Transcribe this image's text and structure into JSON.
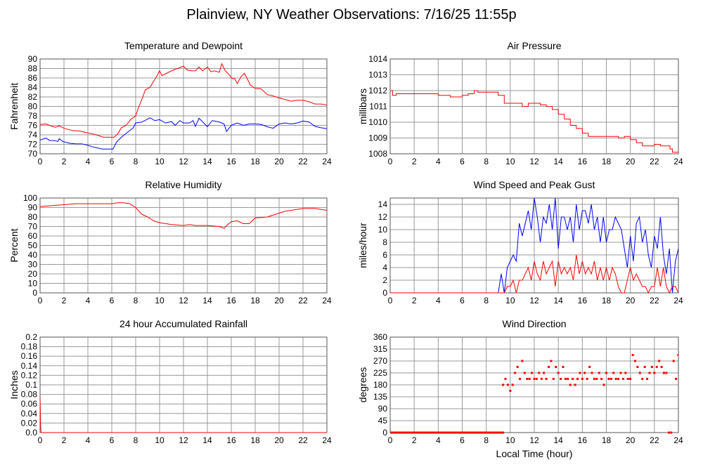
{
  "title": "Plainview, NY Weather Observations: 7/16/25 11:55p",
  "xlabel": "Local Time (hour)",
  "colors": {
    "red": "#ff0000",
    "blue": "#0000ff",
    "grid": "#999999"
  },
  "chart_data": [
    {
      "type": "line",
      "title": "Temperature and Dewpoint",
      "ylabel": "Fahrenheit",
      "xlim": [
        0,
        24
      ],
      "ylim": [
        70,
        90
      ],
      "xticks": [
        "0",
        "2",
        "4",
        "6",
        "8",
        "10",
        "12",
        "14",
        "16",
        "18",
        "20",
        "22",
        "24"
      ],
      "yticks": [
        "70",
        "72",
        "74",
        "76",
        "78",
        "80",
        "82",
        "84",
        "86",
        "88",
        "90"
      ],
      "grid": true,
      "series": [
        {
          "color": "#ff0000",
          "x": [
            0,
            0.5,
            1,
            1.3,
            1.6,
            2,
            2.7,
            3.3,
            4,
            4.7,
            5.3,
            6.2,
            6.5,
            6.8,
            7.2,
            7.6,
            8,
            8.2,
            8.6,
            8.8,
            9.2,
            9.5,
            9.8,
            10,
            10.2,
            10.6,
            11,
            11.5,
            12,
            12.3,
            12.7,
            13,
            13.3,
            13.6,
            14,
            14.3,
            14.6,
            15,
            15.2,
            15.5,
            15.9,
            16,
            16.3,
            16.5,
            16.8,
            17.1,
            17.3,
            17.6,
            18,
            18.5,
            19,
            19.5,
            20,
            21,
            21.5,
            22,
            22.5,
            23,
            23.5,
            24
          ],
          "y": [
            76.2,
            76.3,
            75.8,
            75.6,
            75.9,
            75.4,
            74.9,
            74.8,
            74.4,
            74,
            73.5,
            73.5,
            74.2,
            75.5,
            76,
            77.3,
            78,
            79.5,
            82,
            83.5,
            84,
            85.3,
            86.5,
            87.5,
            86.5,
            87,
            87.5,
            88,
            88.5,
            87.7,
            87.5,
            87.5,
            88.3,
            87.5,
            88.3,
            87.3,
            87.5,
            87.2,
            89,
            87.5,
            86.5,
            86,
            85.8,
            84.8,
            86.2,
            87,
            86,
            84.5,
            83.8,
            83.7,
            82.5,
            82.2,
            81.8,
            81.1,
            81.3,
            81.3,
            81,
            80.5,
            80.5,
            80.3
          ]
        },
        {
          "color": "#0000ff",
          "x": [
            0,
            0.5,
            0.8,
            1.2,
            1.5,
            1.6,
            1.9,
            2.5,
            3,
            3.5,
            4,
            4.5,
            5.2,
            6.1,
            6.4,
            6.8,
            7.3,
            7.8,
            8,
            8.5,
            9,
            9.2,
            9.6,
            10,
            10.5,
            11,
            11.3,
            11.7,
            12,
            12.5,
            12.8,
            13,
            13.3,
            13.7,
            14,
            14.4,
            15,
            15.4,
            15.6,
            16,
            16.5,
            17,
            17.5,
            18,
            18.5,
            19,
            19.5,
            20,
            20.5,
            21,
            21.5,
            22,
            22.5,
            23,
            23.5,
            24
          ],
          "y": [
            72.9,
            73.3,
            72.8,
            72.8,
            72.6,
            73.2,
            72.6,
            72.2,
            72.1,
            72.1,
            71.8,
            71.4,
            71,
            71,
            72.5,
            73.5,
            74.5,
            75.5,
            76.5,
            76.7,
            77.3,
            77.6,
            77,
            77.2,
            76.5,
            76.8,
            76,
            77,
            76.5,
            76.5,
            77,
            75.8,
            77.5,
            76.5,
            75.7,
            77,
            76.7,
            76.3,
            74.7,
            76,
            76.5,
            76,
            76.3,
            76.3,
            76.2,
            75.7,
            75.4,
            76.3,
            76.5,
            76.3,
            76.5,
            76.9,
            76.7,
            75.8,
            75.5,
            75.3
          ]
        }
      ]
    },
    {
      "type": "line",
      "title": "Air Pressure",
      "ylabel": "millibars",
      "xlim": [
        0,
        24
      ],
      "ylim": [
        1008,
        1014
      ],
      "xticks": [
        "0",
        "2",
        "4",
        "6",
        "8",
        "10",
        "12",
        "14",
        "16",
        "18",
        "20",
        "22",
        "24"
      ],
      "yticks": [
        "1008",
        "1009",
        "1010",
        "1011",
        "1012",
        "1013",
        "1014"
      ],
      "grid": true,
      "step": true,
      "series": [
        {
          "color": "#ff0000",
          "x": [
            0,
            0.2,
            0.5,
            4,
            5,
            6,
            6.5,
            7,
            7.3,
            8.5,
            9,
            9.5,
            11,
            11.5,
            12.5,
            13,
            13.5,
            14,
            14.5,
            15,
            15.5,
            16,
            16.5,
            19,
            19.5,
            20,
            20.5,
            21,
            22,
            22.5,
            23.3,
            23.5,
            24
          ],
          "y": [
            1012,
            1011.7,
            1011.8,
            1011.7,
            1011.6,
            1011.7,
            1011.8,
            1012,
            1011.9,
            1011.9,
            1011.7,
            1011.2,
            1011,
            1011.2,
            1011.1,
            1011,
            1010.8,
            1010.5,
            1010.2,
            1009.8,
            1009.6,
            1009.3,
            1009.1,
            1009,
            1009.1,
            1008.9,
            1008.7,
            1008.5,
            1008.6,
            1008.5,
            1008.3,
            1008.1,
            1008.1
          ]
        }
      ]
    },
    {
      "type": "line",
      "title": "Relative Humidity",
      "ylabel": "Percent",
      "xlim": [
        0,
        24
      ],
      "ylim": [
        0,
        100
      ],
      "xticks": [
        "0",
        "2",
        "4",
        "6",
        "8",
        "10",
        "12",
        "14",
        "16",
        "18",
        "20",
        "22",
        "24"
      ],
      "yticks": [
        "0",
        "10",
        "20",
        "30",
        "40",
        "50",
        "60",
        "70",
        "80",
        "90",
        "100"
      ],
      "grid": true,
      "series": [
        {
          "color": "#ff0000",
          "x": [
            0,
            1,
            2,
            3,
            6,
            6.5,
            7,
            7.5,
            8,
            8.5,
            9,
            9.5,
            10,
            11,
            12,
            12.5,
            13,
            14,
            15,
            15.4,
            15.7,
            16,
            16.5,
            17,
            17.5,
            18,
            19,
            20,
            20.5,
            21,
            22,
            23,
            24
          ],
          "y": [
            91,
            92,
            93,
            94,
            94,
            95,
            95,
            94,
            90,
            83,
            80,
            76,
            74,
            72,
            71,
            72,
            71,
            71,
            70,
            68,
            72,
            75,
            76,
            73,
            73,
            79,
            80,
            84,
            86,
            87,
            89,
            89,
            87
          ]
        }
      ]
    },
    {
      "type": "line",
      "title": "Wind Speed and Peak Gust",
      "ylabel": "miles/hour",
      "xlim": [
        0,
        24
      ],
      "ylim": [
        0,
        15
      ],
      "xticks": [
        "0",
        "2",
        "4",
        "6",
        "8",
        "10",
        "12",
        "14",
        "16",
        "18",
        "20",
        "22",
        "24"
      ],
      "yticks": [
        "0",
        "2",
        "4",
        "6",
        "8",
        "10",
        "12",
        "14"
      ],
      "grid": true,
      "series": [
        {
          "color": "#0000ff",
          "x": [
            0,
            9,
            9.25,
            9.5,
            9.75,
            10,
            10.25,
            10.5,
            10.75,
            11,
            11.25,
            11.5,
            11.75,
            12,
            12.25,
            12.5,
            12.75,
            13,
            13.25,
            13.5,
            13.75,
            14,
            14.25,
            14.5,
            14.75,
            15,
            15.25,
            15.5,
            15.75,
            16,
            16.25,
            16.5,
            16.75,
            17,
            17.25,
            17.5,
            17.75,
            18,
            18.25,
            18.5,
            18.75,
            19,
            19.25,
            19.5,
            19.75,
            20,
            20.25,
            20.5,
            20.75,
            21,
            21.25,
            21.5,
            21.75,
            22,
            22.25,
            22.5,
            22.75,
            23,
            23.25,
            23.5,
            23.75,
            24
          ],
          "y": [
            0,
            0,
            3,
            0,
            4,
            5,
            6,
            5,
            11,
            9,
            11,
            13,
            10,
            15,
            12,
            8,
            12,
            11,
            14,
            10,
            15,
            7,
            12,
            12,
            10,
            12,
            8,
            14,
            10,
            13,
            13,
            11,
            14,
            10,
            12,
            8,
            12,
            8,
            10,
            10,
            12,
            11,
            10,
            7,
            4,
            9,
            5,
            11,
            12,
            8,
            10,
            6,
            4,
            9,
            7,
            12,
            6,
            3,
            7,
            0,
            5,
            7
          ]
        },
        {
          "color": "#ff0000",
          "x": [
            0,
            9,
            9.25,
            9.5,
            9.75,
            10,
            10.25,
            10.5,
            10.75,
            11,
            11.25,
            11.5,
            11.75,
            12,
            12.25,
            12.5,
            12.75,
            13,
            13.25,
            13.5,
            13.75,
            14,
            14.25,
            14.5,
            14.75,
            15,
            15.25,
            15.5,
            15.75,
            16,
            16.25,
            16.5,
            16.75,
            17,
            17.25,
            17.5,
            17.75,
            18,
            18.25,
            18.5,
            18.75,
            19,
            19.25,
            19.5,
            19.75,
            20,
            20.25,
            20.5,
            20.75,
            21,
            21.25,
            21.5,
            21.75,
            22,
            22.25,
            22.5,
            22.75,
            23,
            23.25,
            23.5,
            23.75,
            24
          ],
          "y": [
            0,
            0,
            0,
            0,
            1,
            1,
            2,
            0,
            2,
            2,
            3,
            4,
            2,
            5,
            3,
            2,
            5,
            3,
            4,
            5,
            1,
            5,
            3,
            4,
            3,
            4,
            2,
            6,
            3,
            5,
            3,
            4,
            3,
            5,
            2,
            4,
            2,
            4,
            2,
            4,
            3,
            1,
            0,
            0,
            2,
            4,
            2,
            3,
            2,
            1,
            1,
            0,
            1,
            1,
            4,
            1,
            4,
            1,
            0,
            1,
            1,
            0
          ]
        }
      ]
    },
    {
      "type": "line",
      "title": "24 hour Accumulated Rainfall",
      "ylabel": "Inches",
      "xlim": [
        0,
        24
      ],
      "ylim": [
        0,
        0.2
      ],
      "xticks": [
        "0",
        "2",
        "4",
        "6",
        "8",
        "10",
        "12",
        "14",
        "16",
        "18",
        "20",
        "22",
        "24"
      ],
      "yticks": [
        "0.0",
        "0.02",
        "0.04",
        "0.06",
        "0.08",
        "0.1",
        "0.12",
        "0.14",
        "0.16",
        "0.18",
        "0.2"
      ],
      "grid": true,
      "series": [
        {
          "color": "#ff0000",
          "x": [
            0,
            0.05,
            0.1,
            24
          ],
          "y": [
            0.075,
            0.01,
            0,
            0
          ]
        }
      ]
    },
    {
      "type": "scatter",
      "title": "Wind Direction",
      "ylabel": "degrees",
      "xlim": [
        0,
        24
      ],
      "ylim": [
        0,
        360
      ],
      "xticks": [
        "0",
        "2",
        "4",
        "6",
        "8",
        "10",
        "12",
        "14",
        "16",
        "18",
        "20",
        "22",
        "24"
      ],
      "yticks": [
        "0",
        "45",
        "90",
        "135",
        "180",
        "225",
        "270",
        "315",
        "360"
      ],
      "grid": true,
      "calm_run": {
        "from": 0,
        "to": 9.4,
        "value": 0
      },
      "series": [
        {
          "color": "#ff0000",
          "x": [
            9.4,
            9.6,
            9.8,
            10.0,
            10.2,
            10.4,
            10.6,
            10.8,
            11.0,
            11.2,
            11.4,
            11.6,
            11.8,
            12.0,
            12.2,
            12.4,
            12.6,
            12.8,
            13.0,
            13.2,
            13.4,
            13.6,
            13.8,
            14.0,
            14.2,
            14.4,
            14.6,
            14.8,
            15.0,
            15.2,
            15.4,
            15.6,
            15.8,
            16.0,
            16.2,
            16.4,
            16.6,
            16.8,
            17.0,
            17.2,
            17.4,
            17.6,
            17.8,
            18.0,
            18.2,
            18.4,
            18.6,
            18.8,
            19.0,
            19.2,
            19.4,
            19.6,
            19.8,
            20.0,
            20.2,
            20.4,
            20.6,
            20.8,
            21.0,
            21.2,
            21.4,
            21.6,
            21.8,
            22.0,
            22.2,
            22.4,
            22.6,
            22.8,
            23.0,
            23.2,
            23.4,
            23.6,
            23.8,
            24.0
          ],
          "y": [
            180,
            202.5,
            180,
            157.5,
            180,
            225,
            247.5,
            202.5,
            270,
            225,
            202.5,
            202.5,
            225,
            202.5,
            202.5,
            225,
            202.5,
            225,
            202.5,
            247.5,
            270,
            202.5,
            247.5,
            225,
            202.5,
            247.5,
            202.5,
            202.5,
            180,
            202.5,
            180,
            202.5,
            225,
            202.5,
            225,
            202.5,
            247.5,
            225,
            202.5,
            202.5,
            225,
            202.5,
            180,
            225,
            202.5,
            202.5,
            225,
            202.5,
            202.5,
            225,
            202.5,
            225,
            202.5,
            202.5,
            292.5,
            270,
            247.5,
            225,
            202.5,
            247.5,
            202.5,
            225,
            247.5,
            225,
            247.5,
            270,
            247.5,
            225,
            225,
            0,
            0,
            270,
            202.5,
            292.5
          ]
        }
      ]
    }
  ]
}
